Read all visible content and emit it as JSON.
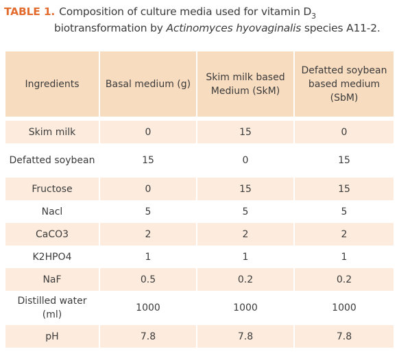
{
  "caption": {
    "label": "TABLE 1.",
    "text_part1": "Composition of culture media used for vitamin D",
    "subscript": "3",
    "text_part2": "biotransformation by ",
    "species_italic": "Actinomyces hyovaginalis",
    "text_part3": " species A11-2."
  },
  "table": {
    "headers": [
      "Ingredients",
      "Basal medium (g)",
      "Skim milk based Medium (SkM)",
      "Defatted soybean based medium (SbM)"
    ],
    "rows": [
      {
        "ingredient": "Skim milk",
        "basal": "0",
        "skm": "15",
        "sbm": "0"
      },
      {
        "ingredient": "Defatted soybean",
        "basal": "15",
        "skm": "0",
        "sbm": "15"
      },
      {
        "ingredient": "Fructose",
        "basal": "0",
        "skm": "15",
        "sbm": "15"
      },
      {
        "ingredient": "Nacl",
        "basal": "5",
        "skm": "5",
        "sbm": "5"
      },
      {
        "ingredient": "CaCO3",
        "basal": "2",
        "skm": "2",
        "sbm": "2"
      },
      {
        "ingredient": "K2HPO4",
        "basal": "1",
        "skm": "1",
        "sbm": "1"
      },
      {
        "ingredient": "NaF",
        "basal": "0.5",
        "skm": "0.2",
        "sbm": "0.2"
      },
      {
        "ingredient": "Distilled water (ml)",
        "basal": "1000",
        "skm": "1000",
        "sbm": "1000"
      },
      {
        "ingredient": "pH",
        "basal": "7.8",
        "skm": "7.8",
        "sbm": "7.8"
      }
    ]
  },
  "colors": {
    "label": "#e46b2e",
    "header_bg": "#f8dcc0",
    "shaded_row_bg": "#fdecdd",
    "text": "#3a3a3a"
  }
}
